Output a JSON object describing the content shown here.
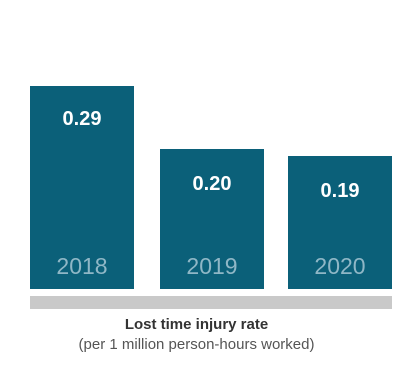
{
  "chart_data": {
    "type": "bar",
    "title": "Lost time injury rate",
    "subtitle": "(per 1 million person-hours worked)",
    "categories": [
      "2018",
      "2019",
      "2020"
    ],
    "values": [
      0.29,
      0.2,
      0.19
    ],
    "value_labels": [
      "0.29",
      "0.20",
      "0.19"
    ],
    "ylim": [
      0,
      0.3
    ],
    "grid": false,
    "legend": "none",
    "colors": {
      "bar": "#0b6079",
      "category_label": "#8fb7c6",
      "value_label": "#ffffff",
      "baseline": "#c9c9c9"
    }
  }
}
